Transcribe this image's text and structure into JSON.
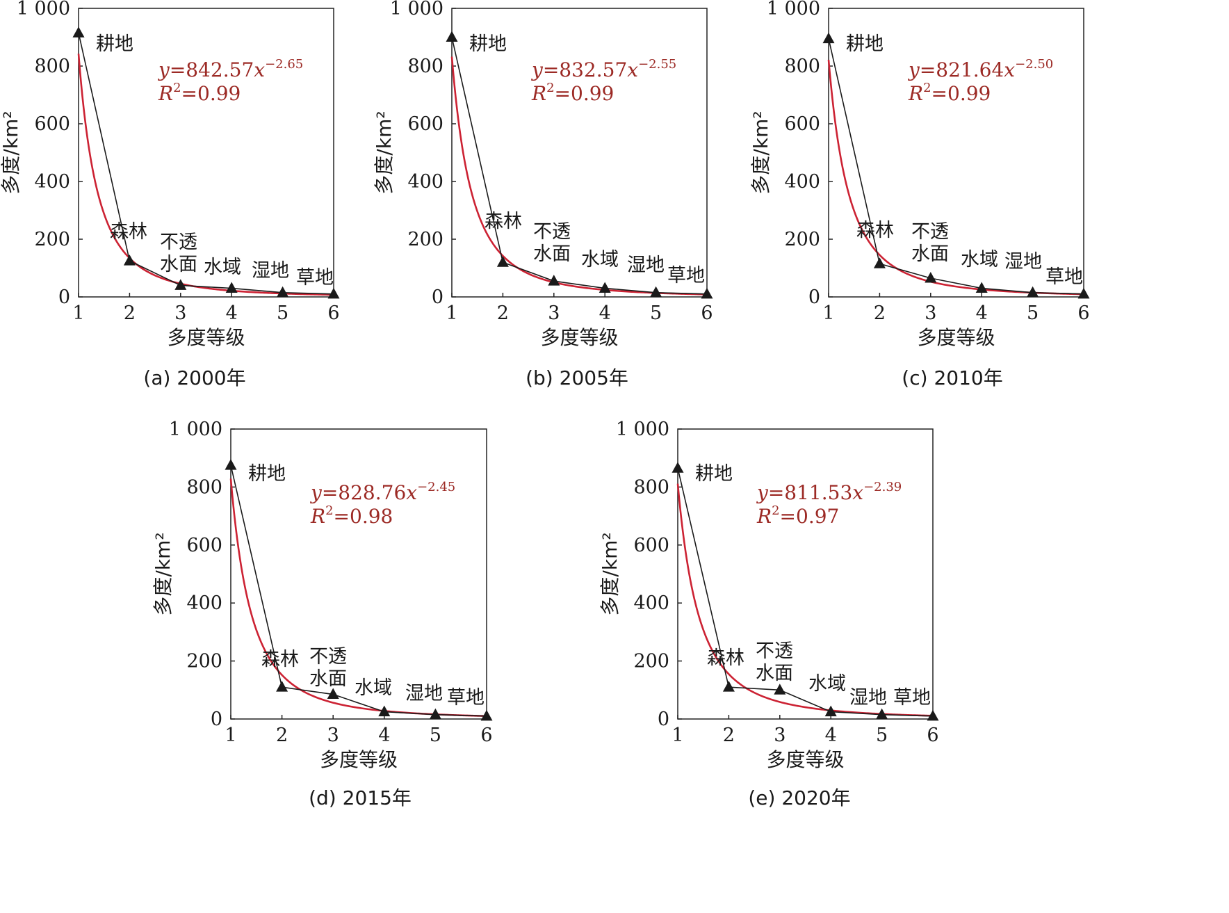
{
  "colors": {
    "fit_curve": "#cc2233",
    "observed": "#1a1a1a",
    "equation": "#9c2a25"
  },
  "marker_icon": "triangle-marker",
  "chart_data": [
    {
      "type": "line",
      "caption": "(a) 2000年",
      "xlabel": "多度等级",
      "ylabel": "多度/km²",
      "xlim": [
        1,
        6
      ],
      "ylim": [
        0,
        1000
      ],
      "x_ticks": [
        "1",
        "2",
        "3",
        "4",
        "5",
        "6"
      ],
      "y_ticks": [
        "0",
        "200",
        "400",
        "600",
        "800",
        "1 000"
      ],
      "x": [
        1,
        2,
        3,
        4,
        5,
        6
      ],
      "categories": [
        [
          "耕地"
        ],
        [
          "森林"
        ],
        [
          "不透",
          "水面"
        ],
        [
          "水域"
        ],
        [
          "湿地"
        ],
        [
          "草地"
        ]
      ],
      "values": [
        915,
        125,
        40,
        30,
        15,
        10
      ],
      "fit": {
        "a": 842.57,
        "b": -2.65,
        "r2": 0.99,
        "eq_y": "y",
        "eq_coef": "=842.57",
        "eq_x": "x",
        "eq_exp": "−2.65",
        "r_sym": "R",
        "r_sup": "2",
        "r_val": "=0.99"
      }
    },
    {
      "type": "line",
      "caption": "(b) 2005年",
      "xlabel": "多度等级",
      "ylabel": "多度/km²",
      "xlim": [
        1,
        6
      ],
      "ylim": [
        0,
        1000
      ],
      "x_ticks": [
        "1",
        "2",
        "3",
        "4",
        "5",
        "6"
      ],
      "y_ticks": [
        "0",
        "200",
        "400",
        "600",
        "800",
        "1 000"
      ],
      "x": [
        1,
        2,
        3,
        4,
        5,
        6
      ],
      "categories": [
        [
          "耕地"
        ],
        [
          "森林"
        ],
        [
          "不透",
          "水面"
        ],
        [
          "水域"
        ],
        [
          "湿地"
        ],
        [
          "草地"
        ]
      ],
      "values": [
        900,
        120,
        55,
        30,
        15,
        10
      ],
      "fit": {
        "a": 832.57,
        "b": -2.55,
        "r2": 0.99,
        "eq_y": "y",
        "eq_coef": "=832.57",
        "eq_x": "x",
        "eq_exp": "−2.55",
        "r_sym": "R",
        "r_sup": "2",
        "r_val": "=0.99"
      }
    },
    {
      "type": "line",
      "caption": "(c) 2010年",
      "xlabel": "多度等级",
      "ylabel": "多度/km²",
      "xlim": [
        1,
        6
      ],
      "ylim": [
        0,
        1000
      ],
      "x_ticks": [
        "1",
        "2",
        "3",
        "4",
        "5",
        "6"
      ],
      "y_ticks": [
        "0",
        "200",
        "400",
        "600",
        "800",
        "1 000"
      ],
      "x": [
        1,
        2,
        3,
        4,
        5,
        6
      ],
      "categories": [
        [
          "耕地"
        ],
        [
          "森林"
        ],
        [
          "不透",
          "水面"
        ],
        [
          "水域"
        ],
        [
          "湿地"
        ],
        [
          "草地"
        ]
      ],
      "values": [
        895,
        115,
        65,
        30,
        15,
        10
      ],
      "fit": {
        "a": 821.64,
        "b": -2.5,
        "r2": 0.99,
        "eq_y": "y",
        "eq_coef": "=821.64",
        "eq_x": "x",
        "eq_exp": "−2.50",
        "r_sym": "R",
        "r_sup": "2",
        "r_val": "=0.99"
      }
    },
    {
      "type": "line",
      "caption": "(d) 2015年",
      "xlabel": "多度等级",
      "ylabel": "多度/km²",
      "xlim": [
        1,
        6
      ],
      "ylim": [
        0,
        1000
      ],
      "x_ticks": [
        "1",
        "2",
        "3",
        "4",
        "5",
        "6"
      ],
      "y_ticks": [
        "0",
        "200",
        "400",
        "600",
        "800",
        "1 000"
      ],
      "x": [
        1,
        2,
        3,
        4,
        5,
        6
      ],
      "categories": [
        [
          "耕地"
        ],
        [
          "森林"
        ],
        [
          "不透",
          "水面"
        ],
        [
          "水域"
        ],
        [
          "湿地"
        ],
        [
          "草地"
        ]
      ],
      "values": [
        875,
        110,
        85,
        25,
        15,
        10
      ],
      "fit": {
        "a": 828.76,
        "b": -2.45,
        "r2": 0.98,
        "eq_y": "y",
        "eq_coef": "=828.76",
        "eq_x": "x",
        "eq_exp": "−2.45",
        "r_sym": "R",
        "r_sup": "2",
        "r_val": "=0.98"
      }
    },
    {
      "type": "line",
      "caption": "(e) 2020年",
      "xlabel": "多度等级",
      "ylabel": "多度/km²",
      "xlim": [
        1,
        6
      ],
      "ylim": [
        0,
        1000
      ],
      "x_ticks": [
        "1",
        "2",
        "3",
        "4",
        "5",
        "6"
      ],
      "y_ticks": [
        "0",
        "200",
        "400",
        "600",
        "800",
        "1 000"
      ],
      "x": [
        1,
        2,
        3,
        4,
        5,
        6
      ],
      "categories": [
        [
          "耕地"
        ],
        [
          "森林"
        ],
        [
          "不透",
          "水面"
        ],
        [
          "水域"
        ],
        [
          "湿地"
        ],
        [
          "草地"
        ]
      ],
      "values": [
        865,
        110,
        100,
        25,
        15,
        10
      ],
      "fit": {
        "a": 811.53,
        "b": -2.39,
        "r2": 0.97,
        "eq_y": "y",
        "eq_coef": "=811.53",
        "eq_x": "x",
        "eq_exp": "−2.39",
        "r_sym": "R",
        "r_sup": "2",
        "r_val": "=0.97"
      }
    }
  ]
}
